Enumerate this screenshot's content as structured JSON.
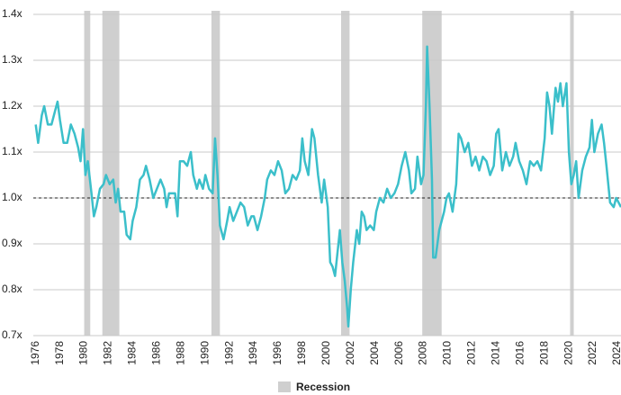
{
  "chart_data": {
    "type": "line",
    "x": [
      1976.0,
      1976.2,
      1976.5,
      1976.7,
      1977.0,
      1977.3,
      1977.6,
      1977.8,
      1978.0,
      1978.3,
      1978.6,
      1978.9,
      1979.2,
      1979.5,
      1979.7,
      1979.9,
      1980.1,
      1980.3,
      1980.6,
      1980.8,
      1981.0,
      1981.3,
      1981.6,
      1981.8,
      1982.1,
      1982.4,
      1982.6,
      1982.8,
      1983.0,
      1983.3,
      1983.5,
      1983.8,
      1984.0,
      1984.3,
      1984.6,
      1984.9,
      1985.1,
      1985.4,
      1985.7,
      1986.0,
      1986.3,
      1986.6,
      1986.8,
      1987.0,
      1987.3,
      1987.5,
      1987.7,
      1987.9,
      1988.2,
      1988.5,
      1988.8,
      1989.0,
      1989.3,
      1989.5,
      1989.8,
      1990.0,
      1990.3,
      1990.6,
      1990.8,
      1991.0,
      1991.2,
      1991.5,
      1991.8,
      1992.0,
      1992.3,
      1992.6,
      1992.9,
      1993.2,
      1993.5,
      1993.8,
      1994.0,
      1994.3,
      1994.6,
      1994.9,
      1995.1,
      1995.4,
      1995.7,
      1996.0,
      1996.3,
      1996.6,
      1996.9,
      1997.2,
      1997.5,
      1997.8,
      1998.0,
      1998.2,
      1998.5,
      1998.8,
      1999.0,
      1999.3,
      1999.6,
      1999.8,
      2000.1,
      2000.3,
      2000.5,
      2000.7,
      2000.9,
      2001.1,
      2001.3,
      2001.5,
      2001.7,
      2001.8,
      2002.0,
      2002.2,
      2002.5,
      2002.7,
      2002.9,
      2003.1,
      2003.3,
      2003.6,
      2003.9,
      2004.1,
      2004.4,
      2004.7,
      2005.0,
      2005.3,
      2005.6,
      2005.9,
      2006.2,
      2006.5,
      2006.8,
      2007.0,
      2007.3,
      2007.5,
      2007.8,
      2008.0,
      2008.2,
      2008.3,
      2008.5,
      2008.7,
      2008.8,
      2009.0,
      2009.3,
      2009.5,
      2009.7,
      2009.9,
      2010.1,
      2010.4,
      2010.7,
      2010.9,
      2011.1,
      2011.4,
      2011.7,
      2012.0,
      2012.3,
      2012.6,
      2012.9,
      2013.2,
      2013.5,
      2013.8,
      2014.0,
      2014.2,
      2014.5,
      2014.8,
      2015.1,
      2015.4,
      2015.6,
      2015.9,
      2016.2,
      2016.5,
      2016.8,
      2017.1,
      2017.4,
      2017.7,
      2018.0,
      2018.2,
      2018.4,
      2018.6,
      2018.9,
      2019.1,
      2019.3,
      2019.5,
      2019.8,
      2020.0,
      2020.2,
      2020.4,
      2020.6,
      2020.8,
      2021.1,
      2021.4,
      2021.7,
      2021.9,
      2022.1,
      2022.4,
      2022.7,
      2022.9,
      2023.1,
      2023.4,
      2023.7,
      2023.9,
      2024.1,
      2024.3
    ],
    "series": [
      {
        "color": "#3bbfca",
        "values": [
          1.16,
          1.12,
          1.18,
          1.2,
          1.16,
          1.16,
          1.19,
          1.21,
          1.17,
          1.12,
          1.12,
          1.16,
          1.14,
          1.11,
          1.08,
          1.15,
          1.05,
          1.08,
          1.01,
          0.96,
          0.98,
          1.02,
          1.03,
          1.05,
          1.03,
          1.04,
          0.99,
          1.02,
          0.97,
          0.97,
          0.92,
          0.91,
          0.95,
          0.98,
          1.04,
          1.05,
          1.07,
          1.04,
          1.0,
          1.02,
          1.04,
          1.02,
          0.98,
          1.01,
          1.01,
          1.01,
          0.96,
          1.08,
          1.08,
          1.07,
          1.1,
          1.05,
          1.02,
          1.04,
          1.02,
          1.05,
          1.02,
          1.01,
          1.13,
          1.05,
          0.94,
          0.91,
          0.95,
          0.98,
          0.95,
          0.97,
          0.99,
          0.98,
          0.94,
          0.96,
          0.96,
          0.93,
          0.96,
          1.0,
          1.04,
          1.06,
          1.05,
          1.08,
          1.06,
          1.01,
          1.02,
          1.05,
          1.04,
          1.06,
          1.13,
          1.08,
          1.05,
          1.15,
          1.13,
          1.05,
          0.99,
          1.04,
          0.98,
          0.86,
          0.85,
          0.83,
          0.88,
          0.93,
          0.86,
          0.82,
          0.76,
          0.72,
          0.8,
          0.86,
          0.93,
          0.9,
          0.97,
          0.96,
          0.93,
          0.94,
          0.93,
          0.97,
          1.0,
          0.99,
          1.02,
          1.0,
          1.01,
          1.03,
          1.07,
          1.1,
          1.06,
          1.01,
          1.02,
          1.09,
          1.03,
          1.05,
          1.2,
          1.33,
          1.2,
          1.04,
          0.87,
          0.87,
          0.93,
          0.95,
          0.97,
          1.0,
          1.01,
          0.97,
          1.03,
          1.14,
          1.13,
          1.1,
          1.12,
          1.07,
          1.09,
          1.06,
          1.09,
          1.08,
          1.05,
          1.07,
          1.14,
          1.15,
          1.06,
          1.1,
          1.07,
          1.09,
          1.12,
          1.08,
          1.06,
          1.03,
          1.08,
          1.07,
          1.08,
          1.06,
          1.13,
          1.23,
          1.2,
          1.14,
          1.24,
          1.21,
          1.25,
          1.2,
          1.25,
          1.1,
          1.03,
          1.05,
          1.08,
          1.0,
          1.06,
          1.09,
          1.11,
          1.17,
          1.1,
          1.14,
          1.16,
          1.12,
          1.07,
          0.99,
          0.98,
          1.0,
          0.99,
          0.98
        ]
      }
    ],
    "xlim": [
      1975.8,
      2024.3
    ],
    "xticks": [
      1976,
      1978,
      1980,
      1982,
      1984,
      1986,
      1988,
      1990,
      1992,
      1994,
      1996,
      1998,
      2000,
      2002,
      2004,
      2006,
      2008,
      2010,
      2012,
      2014,
      2016,
      2018,
      2020,
      2022,
      2024
    ],
    "ylim": [
      0.7,
      1.4
    ],
    "yticks": [
      {
        "value": 0.7,
        "label": "0.7x"
      },
      {
        "value": 0.8,
        "label": "0.8x"
      },
      {
        "value": 0.9,
        "label": "0.9x"
      },
      {
        "value": 1.0,
        "label": "1.0x"
      },
      {
        "value": 1.1,
        "label": "1.1x"
      },
      {
        "value": 1.2,
        "label": "1.2x"
      },
      {
        "value": 1.3,
        "label": "1.3x"
      },
      {
        "value": 1.4,
        "label": "1.4x"
      }
    ],
    "grid": true,
    "reference_line": 1.0,
    "shaded_regions": {
      "name": "Recession",
      "color": "#cfcfcf",
      "spans": [
        [
          1980.0,
          1980.5
        ],
        [
          1981.5,
          1982.9
        ],
        [
          1990.5,
          1991.2
        ],
        [
          2001.2,
          2001.9
        ],
        [
          2007.9,
          2009.5
        ],
        [
          2020.1,
          2020.4
        ]
      ]
    }
  }
}
